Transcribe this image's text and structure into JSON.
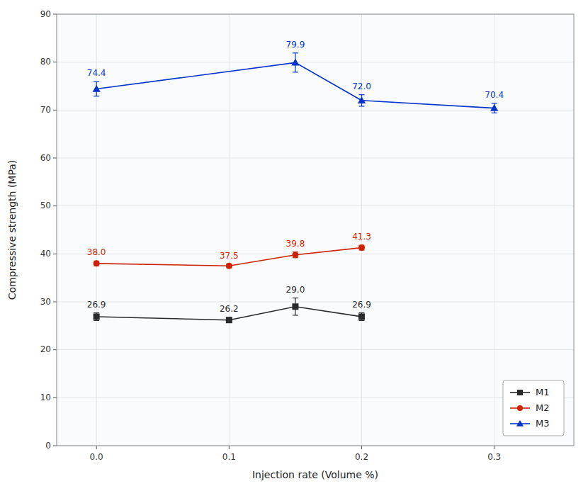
{
  "chart_data": {
    "type": "line",
    "xlabel": "Injection rate (Volume %)",
    "ylabel": "Compressive strength (MPa)",
    "xlim": [
      -0.03,
      0.36
    ],
    "ylim": [
      0,
      90
    ],
    "xticks": [
      {
        "value": 0.0,
        "label": "0.0"
      },
      0.1,
      0.2,
      0.3
    ],
    "yticks": [
      0,
      10,
      20,
      30,
      40,
      50,
      60,
      70,
      80,
      90
    ],
    "grid": true,
    "legend": "lower right",
    "data_labels": true,
    "series": [
      {
        "name": "M1",
        "color": "#2a2a2a",
        "marker": "square",
        "x": [
          0.0,
          0.1,
          0.15,
          0.2
        ],
        "values": [
          26.9,
          26.2,
          29.0,
          26.9
        ],
        "errors": [
          0.8,
          0.5,
          1.8,
          0.8
        ],
        "value_labels": [
          "26.9",
          "26.2",
          "29.0",
          "26.9"
        ]
      },
      {
        "name": "M2",
        "color": "#cc2200",
        "marker": "circle",
        "x": [
          0.0,
          0.1,
          0.15,
          0.2
        ],
        "values": [
          38.0,
          37.5,
          39.8,
          41.3
        ],
        "errors": [
          0.5,
          0.4,
          0.6,
          0.5
        ],
        "value_labels": [
          "38.0",
          "37.5",
          "39.8",
          "41.3"
        ]
      },
      {
        "name": "M3",
        "color": "#0033cc",
        "marker": "triangle",
        "x": [
          0.0,
          0.15,
          0.2,
          0.3
        ],
        "values": [
          74.4,
          79.9,
          72.0,
          70.4
        ],
        "errors": [
          1.5,
          2.0,
          1.2,
          1.0
        ],
        "value_labels": [
          "74.4",
          "79.9",
          "72.0",
          "70.4"
        ]
      }
    ]
  }
}
